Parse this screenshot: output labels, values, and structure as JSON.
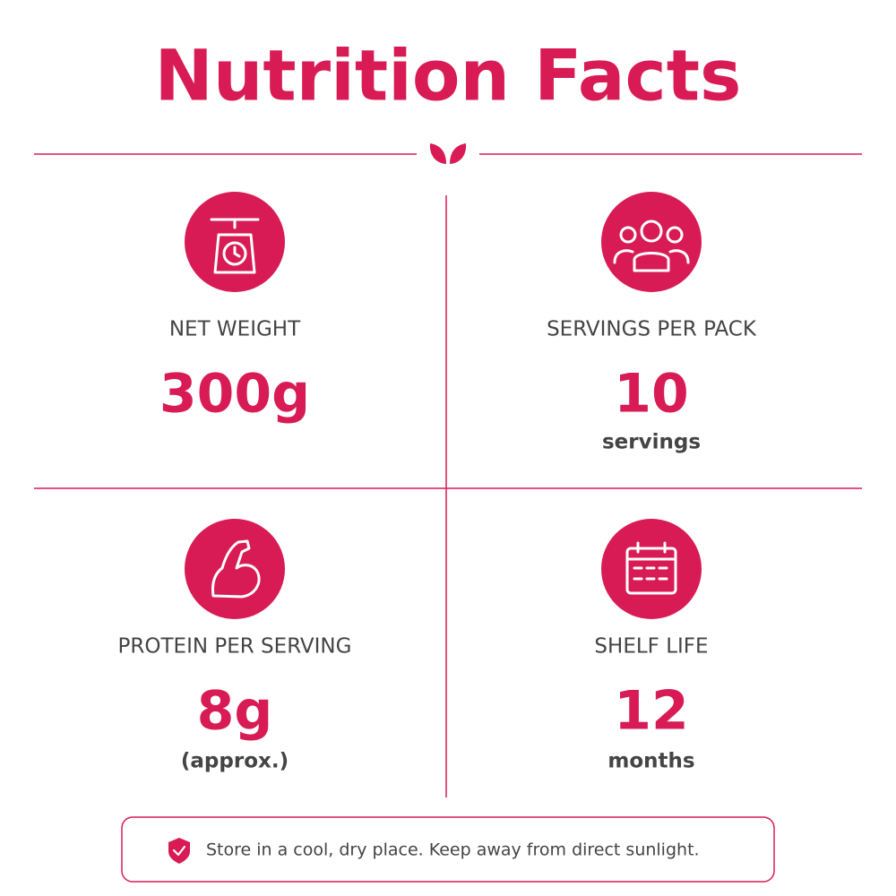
{
  "title": "Nutrition Facts",
  "cells": [
    {
      "label": "NET WEIGHT",
      "value": "300g"
    },
    {
      "label": "SERVINGS PER PACK",
      "value": "10",
      "unit": "servings"
    },
    {
      "label": "PROTEIN PER SERVING",
      "value": "8g",
      "unit": "(approx.)"
    },
    {
      "label": "SHELF LIFE",
      "value": "12",
      "unit": "months"
    }
  ],
  "note": "Store in a cool, dry place. Keep away from direct sunlight."
}
